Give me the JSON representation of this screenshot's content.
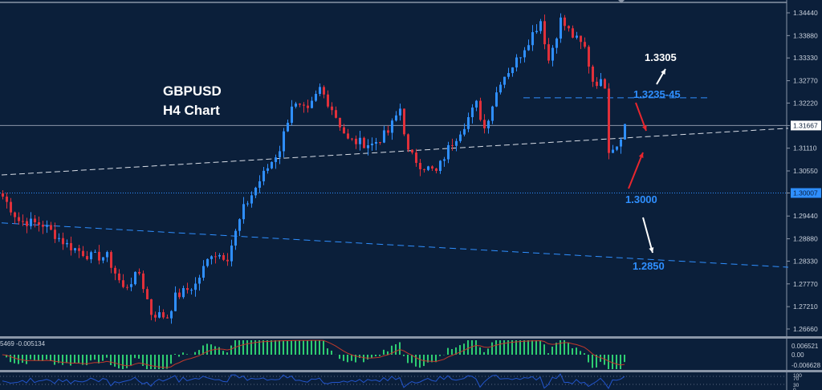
{
  "chart_data": [
    {
      "type": "candlestick",
      "symbol_label": "GBPUSD",
      "timeframe_label": "H4 Chart",
      "y_ticks": [
        "1.34440",
        "1.33880",
        "1.33330",
        "1.32770",
        "1.32220",
        "1.31667",
        "1.31110",
        "1.30550",
        "1.30007",
        "1.29440",
        "1.28880",
        "1.28330",
        "1.27770",
        "1.27210",
        "1.26660"
      ],
      "ylim": [
        1.263,
        1.3475
      ],
      "current_price_label": "1.31667",
      "current_price": 1.31667,
      "marked_level_label": "1.30007",
      "marked_level": 1.30007,
      "close_path": [
        {
          "i": 0,
          "price": 1.2992
        },
        {
          "i": 4,
          "price": 1.2933
        },
        {
          "i": 10,
          "price": 1.2923
        },
        {
          "i": 16,
          "price": 1.2873
        },
        {
          "i": 22,
          "price": 1.2844
        },
        {
          "i": 26,
          "price": 1.2844
        },
        {
          "i": 30,
          "price": 1.2765
        },
        {
          "i": 34,
          "price": 1.2804
        },
        {
          "i": 37,
          "price": 1.2705
        },
        {
          "i": 41,
          "price": 1.2696
        },
        {
          "i": 43,
          "price": 1.2745
        },
        {
          "i": 48,
          "price": 1.2775
        },
        {
          "i": 52,
          "price": 1.2854
        },
        {
          "i": 56,
          "price": 1.2844
        },
        {
          "i": 60,
          "price": 1.2962
        },
        {
          "i": 64,
          "price": 1.3031
        },
        {
          "i": 69,
          "price": 1.311
        },
        {
          "i": 72,
          "price": 1.3219
        },
        {
          "i": 76,
          "price": 1.3199
        },
        {
          "i": 79,
          "price": 1.3258
        },
        {
          "i": 82,
          "price": 1.3209
        },
        {
          "i": 86,
          "price": 1.313
        },
        {
          "i": 92,
          "price": 1.312
        },
        {
          "i": 96,
          "price": 1.315
        },
        {
          "i": 99,
          "price": 1.3209
        },
        {
          "i": 101,
          "price": 1.31
        },
        {
          "i": 104,
          "price": 1.3071
        },
        {
          "i": 108,
          "price": 1.3051
        },
        {
          "i": 111,
          "price": 1.311
        },
        {
          "i": 115,
          "price": 1.317
        },
        {
          "i": 118,
          "price": 1.3219
        },
        {
          "i": 120,
          "price": 1.316
        },
        {
          "i": 124,
          "price": 1.3278
        },
        {
          "i": 128,
          "price": 1.3327
        },
        {
          "i": 131,
          "price": 1.3377
        },
        {
          "i": 134,
          "price": 1.3426
        },
        {
          "i": 136,
          "price": 1.3327
        },
        {
          "i": 139,
          "price": 1.3426
        },
        {
          "i": 142,
          "price": 1.3387
        },
        {
          "i": 145,
          "price": 1.3357
        },
        {
          "i": 147,
          "price": 1.3278
        },
        {
          "i": 150,
          "price": 1.3268
        },
        {
          "i": 151,
          "price": 1.311
        },
        {
          "i": 153,
          "price": 1.312
        },
        {
          "i": 155,
          "price": 1.3168
        }
      ],
      "trendlines": [
        {
          "style": "white-dashed",
          "from": {
            "i": 0,
            "price": 1.3045
          },
          "to": {
            "i": 196,
            "price": 1.316
          }
        },
        {
          "style": "blue-dashed",
          "from": {
            "i": 0,
            "price": 1.2927
          },
          "to": {
            "i": 196,
            "price": 1.2818
          }
        },
        {
          "style": "blue-dashed-horizontal",
          "from": {
            "i": 130,
            "price": 1.3235
          },
          "to": {
            "i": 176,
            "price": 1.3235
          }
        }
      ],
      "annotations": [
        {
          "text": "1.3305",
          "color": "#ffffff"
        },
        {
          "text": "1.3235-45",
          "color": "#2f8fff"
        },
        {
          "text": "1.3000",
          "color": "#2f8fff"
        },
        {
          "text": "1.2850",
          "color": "#2f8fff"
        }
      ],
      "colors": {
        "background": "#0b1f3a",
        "bull": "#2f8fff",
        "bear": "#e0303a",
        "accent_blue": "#2f8fff",
        "arrow_red": "#e8262e",
        "arrow_white": "#ffffff"
      },
      "grid": false
    },
    {
      "type": "bar",
      "indicator": "MACD",
      "header_text": "5469 -0.005134",
      "y_ticks": [
        "0.006521",
        "0.00",
        "-0.006628"
      ],
      "colors": {
        "histogram": "#2ecc71",
        "signal": "#c0392b"
      }
    },
    {
      "type": "line",
      "indicator": "oscillator",
      "y_ticks": [
        "100",
        "70",
        "30",
        "0"
      ],
      "colors": {
        "line": "#2255cc"
      }
    }
  ]
}
